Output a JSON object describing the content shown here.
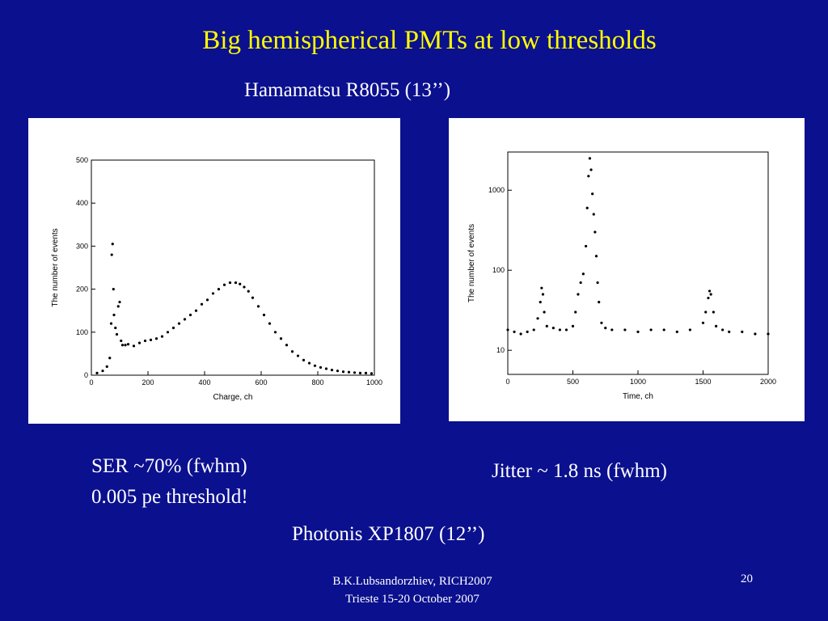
{
  "slide": {
    "title": "Big hemispherical PMTs at low thresholds",
    "subtitle": "Hamamatsu R8055 (13’’)",
    "caption_left_line1": "SER ~70% (fwhm)",
    "caption_left_line2": "0.005 pe threshold!",
    "caption_right": "Jitter ~ 1.8 ns (fwhm)",
    "caption_bottom": "Photonis XP1807 (12’’)",
    "footer_line1": "B.K.Lubsandorzhiev, RICH2007",
    "footer_line2": "Trieste 15-20 October 2007",
    "page_number": "20"
  },
  "chart_data": [
    {
      "type": "scatter",
      "xlabel": "Charge, ch",
      "ylabel": "The number of events",
      "xlim": [
        0,
        1000
      ],
      "ylim": [
        0,
        500
      ],
      "xticks": [
        "0",
        "200",
        "400",
        "600",
        "800",
        "1000"
      ],
      "yticks": [
        "0",
        "100",
        "200",
        "300",
        "400",
        "500"
      ],
      "yscale": "linear",
      "grid": false,
      "series": [
        {
          "x": [
            20,
            40,
            55,
            65,
            70,
            72,
            75,
            78,
            80,
            85,
            90,
            95,
            100,
            105,
            110,
            120,
            130,
            150,
            170,
            190,
            210,
            230,
            250,
            270,
            290,
            310,
            330,
            350,
            370,
            390,
            410,
            430,
            450,
            470,
            490,
            510,
            525,
            540,
            555,
            570,
            590,
            610,
            630,
            650,
            670,
            690,
            710,
            730,
            750,
            770,
            790,
            810,
            830,
            850,
            870,
            890,
            910,
            930,
            950,
            970,
            990
          ],
          "y": [
            5,
            10,
            20,
            40,
            120,
            280,
            305,
            200,
            140,
            110,
            95,
            160,
            170,
            80,
            70,
            70,
            72,
            68,
            75,
            80,
            82,
            85,
            90,
            100,
            110,
            120,
            130,
            140,
            150,
            165,
            175,
            190,
            200,
            210,
            215,
            215,
            212,
            205,
            195,
            180,
            160,
            140,
            120,
            100,
            85,
            70,
            55,
            45,
            35,
            28,
            22,
            18,
            15,
            12,
            10,
            8,
            7,
            6,
            5,
            5,
            4
          ]
        }
      ]
    },
    {
      "type": "scatter",
      "xlabel": "Time, ch",
      "ylabel": "The number of events",
      "xlim": [
        0,
        2000
      ],
      "ylim": [
        5,
        3000
      ],
      "xticks": [
        "0",
        "500",
        "1000",
        "1500",
        "2000"
      ],
      "yticks": [
        "10",
        "100",
        "1000"
      ],
      "yscale": "log",
      "grid": false,
      "series": [
        {
          "x": [
            0,
            50,
            100,
            150,
            200,
            230,
            250,
            260,
            270,
            280,
            300,
            350,
            400,
            450,
            500,
            520,
            540,
            560,
            580,
            600,
            610,
            620,
            630,
            640,
            650,
            660,
            670,
            680,
            690,
            700,
            720,
            750,
            800,
            900,
            1000,
            1100,
            1200,
            1300,
            1400,
            1500,
            1520,
            1540,
            1550,
            1560,
            1580,
            1600,
            1650,
            1700,
            1800,
            1900,
            2000
          ],
          "y": [
            18,
            17,
            16,
            17,
            18,
            25,
            40,
            60,
            50,
            30,
            20,
            19,
            18,
            18,
            20,
            30,
            50,
            70,
            90,
            200,
            600,
            1500,
            2500,
            1800,
            900,
            500,
            300,
            150,
            70,
            40,
            22,
            19,
            18,
            18,
            17,
            18,
            18,
            17,
            18,
            22,
            30,
            45,
            55,
            50,
            30,
            20,
            18,
            17,
            17,
            16,
            16
          ]
        }
      ]
    }
  ]
}
